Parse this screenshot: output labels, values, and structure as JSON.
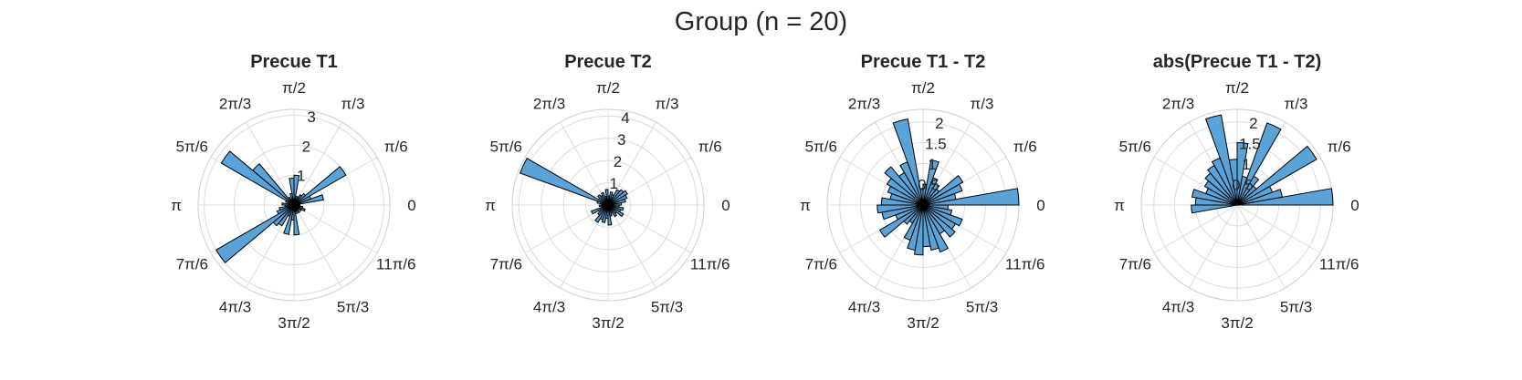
{
  "figure": {
    "title": "Group (n = 20)"
  },
  "colors": {
    "bar_fill": "#5aa3d8",
    "bar_edge": "#000000",
    "grid": "#dcdcdc",
    "text": "#262626"
  },
  "chart_data": [
    {
      "type": "polar_histogram",
      "title": "Precue T1",
      "angle_tick_labels": [
        "0",
        "π/6",
        "π/3",
        "π/2",
        "2π/3",
        "5π/6",
        "π",
        "7π/6",
        "4π/3",
        "3π/2",
        "5π/3",
        "11π/6"
      ],
      "rlim": [
        0,
        3.2
      ],
      "r_ticks": [
        1,
        2,
        3
      ],
      "r_tick_labels": [
        "1",
        "2",
        "3"
      ],
      "bin_width_deg": 10,
      "bins_deg": [
        0,
        10,
        20,
        30,
        40,
        50,
        60,
        70,
        80,
        90,
        100,
        110,
        120,
        130,
        140,
        150,
        160,
        170,
        180,
        190,
        200,
        210,
        220,
        230,
        240,
        250,
        260,
        270,
        280,
        290,
        300,
        310,
        320,
        330,
        340,
        350
      ],
      "values": [
        0.2,
        1.0,
        0.6,
        2.0,
        0.5,
        0.4,
        0.3,
        0.3,
        1.0,
        0.9,
        0.4,
        0.2,
        0.3,
        1.8,
        2.8,
        0.3,
        0.2,
        0.4,
        0.3,
        0.5,
        0.6,
        3.0,
        0.9,
        0.8,
        0.4,
        1.0,
        0.5,
        1.0,
        0.3,
        0.2,
        0.3,
        0.2,
        0.3,
        0.4,
        0.3,
        0.2
      ]
    },
    {
      "type": "polar_histogram",
      "title": "Precue T2",
      "angle_tick_labels": [
        "0",
        "π/6",
        "π/3",
        "π/2",
        "2π/3",
        "5π/6",
        "π",
        "7π/6",
        "4π/3",
        "3π/2",
        "5π/3",
        "11π/6"
      ],
      "rlim": [
        0,
        4.3
      ],
      "r_ticks": [
        1,
        2,
        3,
        4
      ],
      "r_tick_labels": [
        "1",
        "2",
        "3",
        "4"
      ],
      "bin_width_deg": 10,
      "bins_deg": [
        0,
        10,
        20,
        30,
        40,
        50,
        60,
        70,
        80,
        90,
        100,
        110,
        120,
        130,
        140,
        150,
        160,
        170,
        180,
        190,
        200,
        210,
        220,
        230,
        240,
        250,
        260,
        270,
        280,
        290,
        300,
        310,
        320,
        330,
        340,
        350
      ],
      "values": [
        0.6,
        0.8,
        0.9,
        1.0,
        0.9,
        0.8,
        0.5,
        0.6,
        0.4,
        0.7,
        0.4,
        0.6,
        0.5,
        0.6,
        0.5,
        4.2,
        0.5,
        0.3,
        0.4,
        0.3,
        0.8,
        0.5,
        0.6,
        0.9,
        0.7,
        0.8,
        0.6,
        0.9,
        0.5,
        0.4,
        0.6,
        0.5,
        0.8,
        0.6,
        0.7,
        0.5
      ]
    },
    {
      "type": "polar_histogram",
      "title": "Precue T1 - T2",
      "angle_tick_labels": [
        "0",
        "π/6",
        "π/3",
        "π/2",
        "2π/3",
        "5π/6",
        "π",
        "7π/6",
        "4π/3",
        "3π/2",
        "5π/3",
        "11π/6"
      ],
      "rlim": [
        0,
        2.3
      ],
      "r_ticks": [
        0.5,
        1,
        1.5,
        2
      ],
      "r_tick_labels": [
        "0.5",
        "1",
        "1.5",
        "2"
      ],
      "bin_width_deg": 10,
      "bins_deg": [
        0,
        10,
        20,
        30,
        40,
        50,
        60,
        70,
        80,
        90,
        100,
        110,
        120,
        130,
        140,
        150,
        160,
        170,
        180,
        190,
        200,
        210,
        220,
        230,
        240,
        250,
        260,
        270,
        280,
        290,
        300,
        310,
        320,
        330,
        340,
        350
      ],
      "values": [
        2.3,
        0.8,
        1.0,
        1.1,
        0.5,
        0.6,
        0.7,
        1.1,
        0.5,
        0.4,
        2.1,
        1.1,
        0.9,
        1.2,
        1.0,
        0.9,
        0.8,
        1.0,
        1.1,
        1.0,
        0.7,
        1.2,
        0.6,
        0.5,
        0.9,
        1.1,
        1.2,
        1.0,
        1.1,
        1.2,
        0.8,
        1.0,
        0.9,
        1.0,
        0.7,
        0.6
      ]
    },
    {
      "type": "polar_histogram",
      "title": "abs(Precue T1 - T2)",
      "angle_tick_labels": [
        "0",
        "π/6",
        "π/3",
        "π/2",
        "2π/3",
        "5π/6",
        "π",
        "7π/6",
        "4π/3",
        "3π/2",
        "5π/3",
        "11π/6"
      ],
      "rlim": [
        0,
        2.3
      ],
      "r_ticks": [
        0.5,
        1,
        1.5,
        2
      ],
      "r_tick_labels": [
        "0.5",
        "1",
        "1.5",
        "2"
      ],
      "bin_width_deg": 10,
      "bins_deg": [
        0,
        10,
        20,
        30,
        40,
        50,
        60,
        70,
        80,
        90,
        100,
        110,
        120,
        130,
        140,
        150,
        160,
        170,
        180,
        190,
        200,
        210,
        220,
        230,
        240,
        250,
        260,
        270,
        280,
        290,
        300,
        310,
        320,
        330,
        340,
        350
      ],
      "values": [
        2.3,
        1.1,
        0.9,
        2.2,
        0.6,
        0.8,
        2.1,
        0.7,
        1.5,
        1.1,
        2.2,
        1.2,
        1.1,
        1.0,
        0.9,
        0.8,
        1.1,
        1.0,
        1.1,
        0,
        0,
        0,
        0,
        0,
        0,
        0,
        0,
        0,
        0,
        0,
        0,
        0,
        0,
        0,
        0,
        0
      ]
    }
  ]
}
